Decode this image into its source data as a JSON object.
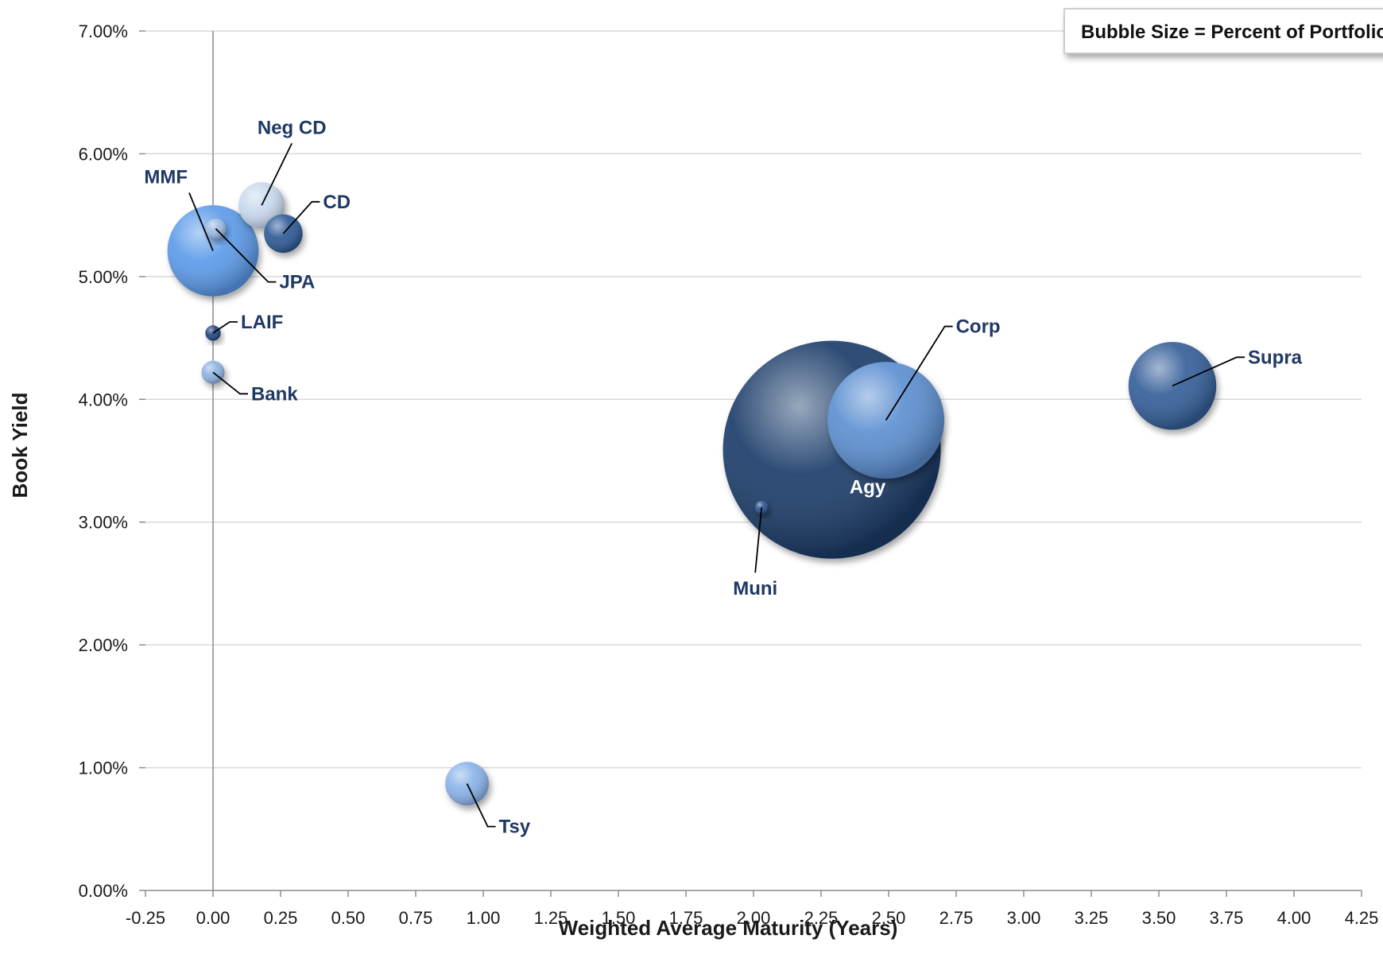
{
  "chart_data": {
    "type": "scatter",
    "subtype": "bubble",
    "title": "",
    "xlabel": "Weighted Average Maturity (Years)",
    "ylabel": "Book Yield",
    "xlim": [
      -0.25,
      4.25
    ],
    "ylim": [
      0,
      0.07
    ],
    "x_ticks": [
      -0.25,
      0,
      0.25,
      0.5,
      0.75,
      1,
      1.25,
      1.5,
      1.75,
      2,
      2.25,
      2.5,
      2.75,
      3,
      3.25,
      3.5,
      3.75,
      4,
      4.25
    ],
    "x_tick_labels": [
      "-0.25",
      "0.00",
      "0.25",
      "0.50",
      "0.75",
      "1.00",
      "1.25",
      "1.50",
      "1.75",
      "2.00",
      "2.25",
      "2.50",
      "2.75",
      "3.00",
      "3.25",
      "3.50",
      "3.75",
      "4.00",
      "4.25"
    ],
    "y_ticks": [
      0,
      0.01,
      0.02,
      0.03,
      0.04,
      0.05,
      0.06,
      0.07
    ],
    "y_tick_labels": [
      "0.00%",
      "1.00%",
      "2.00%",
      "3.00%",
      "4.00%",
      "5.00%",
      "6.00%",
      "7.00%"
    ],
    "grid": "horizontal",
    "legend_note": "Bubble Size = Percent of Portfolio",
    "legend_placement": "top-right",
    "points": [
      {
        "label": "Agy",
        "x": 2.29,
        "y": 0.0359,
        "size": 40.0,
        "color": "#1f3c6b",
        "inside": true
      },
      {
        "label": "Corp",
        "x": 2.49,
        "y": 0.0383,
        "size": 11.5,
        "color": "#5b8fd1"
      },
      {
        "label": "Supra",
        "x": 3.55,
        "y": 0.0411,
        "size": 6.5,
        "color": "#345f99"
      },
      {
        "label": "MMF",
        "x": 0.0,
        "y": 0.0521,
        "size": 7.0,
        "color": "#5b9bea"
      },
      {
        "label": "Neg CD",
        "x": 0.18,
        "y": 0.0558,
        "size": 1.8,
        "color": "#c9d9ef"
      },
      {
        "label": "CD",
        "x": 0.26,
        "y": 0.0535,
        "size": 1.25,
        "color": "#2f5a95"
      },
      {
        "label": "JPA",
        "x": 0.01,
        "y": 0.0539,
        "size": 0.35,
        "color": "#9dbce3"
      },
      {
        "label": "LAIF",
        "x": 0.0,
        "y": 0.0454,
        "size": 0.2,
        "color": "#24477d"
      },
      {
        "label": "Bank",
        "x": 0.0,
        "y": 0.0422,
        "size": 0.45,
        "color": "#8fb2e0"
      },
      {
        "label": "Muni",
        "x": 2.03,
        "y": 0.0312,
        "size": 0.15,
        "color": "#2a5290"
      },
      {
        "label": "Tsy",
        "x": 0.94,
        "y": 0.0087,
        "size": 1.6,
        "color": "#8ab4ea"
      }
    ]
  }
}
